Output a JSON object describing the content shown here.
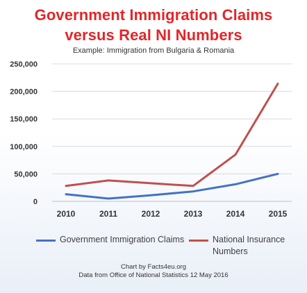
{
  "header": {
    "title_line1": "Government Immigration Claims",
    "title_line2": "versus Real NI Numbers",
    "subtitle": "Example: Immigration from Bulgaria & Romania"
  },
  "footer": {
    "credit": "Chart by Facts4eu.org",
    "source": "Data from Office of National Statistics 12 May 2016"
  },
  "legend": {
    "items": [
      {
        "label": "Government Immigration Claims",
        "color": "#4472c4"
      },
      {
        "label": "National Insurance Numbers",
        "color": "#c0504d"
      }
    ]
  },
  "chart_data": {
    "type": "line",
    "title": "Government Immigration Claims versus Real NI Numbers",
    "subtitle": "Example: Immigration from Bulgaria & Romania",
    "categories": [
      "2010",
      "2011",
      "2012",
      "2013",
      "2014",
      "2015"
    ],
    "y_ticks": [
      "0",
      "50,000",
      "100,000",
      "150,000",
      "200,000",
      "250,000"
    ],
    "ylim": [
      0,
      250000
    ],
    "grid": true,
    "legend_position": "bottom",
    "series": [
      {
        "name": "Government Immigration Claims",
        "color": "#4472c4",
        "values": [
          13000,
          5000,
          11000,
          18000,
          31000,
          50000
        ]
      },
      {
        "name": "National Insurance Numbers",
        "color": "#c0504d",
        "values": [
          28000,
          38000,
          33000,
          28000,
          85000,
          214000
        ]
      }
    ]
  }
}
